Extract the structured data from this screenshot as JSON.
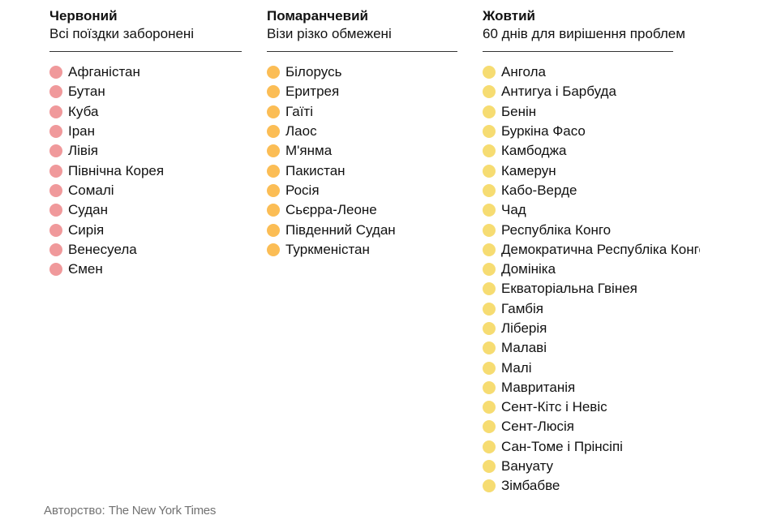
{
  "columns": [
    {
      "id": "red",
      "title": "Червоний",
      "subtitle": "Всі поїздки заборонені",
      "dot_color": "#f0999b",
      "countries": [
        "Афганістан",
        "Бутан",
        "Куба",
        "Іран",
        "Лівія",
        "Північна Корея",
        "Сомалі",
        "Судан",
        "Сирія",
        "Венесуела",
        "Ємен"
      ]
    },
    {
      "id": "orange",
      "title": "Помаранчевий",
      "subtitle": "Візи різко обмежені",
      "dot_color": "#fbbd55",
      "countries": [
        "Білорусь",
        "Еритрея",
        "Гаїті",
        "Лаос",
        "М'янма",
        "Пакистан",
        "Росія",
        "Сьєрра-Леоне",
        "Південний Судан",
        "Туркменістан"
      ]
    },
    {
      "id": "yellow",
      "title": "Жовтий",
      "subtitle": "60 днів для вирішення проблем",
      "dot_color": "#f6dc72",
      "countries": [
        "Ангола",
        "Антигуа і Барбуда",
        "Бенін",
        "Буркіна Фасо",
        "Камбоджа",
        "Камерун",
        "Кабо-Верде",
        "Чад",
        "Республіка Конго",
        "Демократична Республіка Конго",
        "Домініка",
        "Екваторіальна Гвінея",
        "Гамбія",
        "Ліберія",
        "Малаві",
        "Малі",
        "Мавританія",
        "Сент-Кітс і Невіс",
        "Сент-Люсія",
        "Сан-Томе і Прінсіпі",
        "Вануату",
        "Зімбабве"
      ]
    }
  ],
  "credit": {
    "label": "Авторство:",
    "source": "The New York Times"
  }
}
